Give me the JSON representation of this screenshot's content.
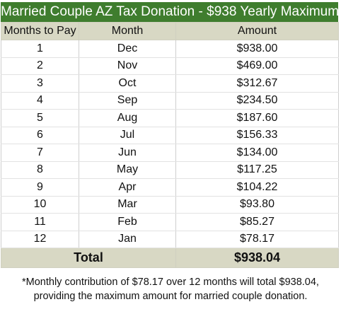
{
  "title": "Married Couple AZ Tax Donation - $938 Yearly Maximum",
  "columns": [
    "Months to Pay",
    "Month",
    "Amount"
  ],
  "rows": [
    {
      "months": "1",
      "month": "Dec",
      "amount": "$938.00"
    },
    {
      "months": "2",
      "month": "Nov",
      "amount": "$469.00"
    },
    {
      "months": "3",
      "month": "Oct",
      "amount": "$312.67"
    },
    {
      "months": "4",
      "month": "Sep",
      "amount": "$234.50"
    },
    {
      "months": "5",
      "month": "Aug",
      "amount": "$187.60"
    },
    {
      "months": "6",
      "month": "Jul",
      "amount": "$156.33"
    },
    {
      "months": "7",
      "month": "Jun",
      "amount": "$134.00"
    },
    {
      "months": "8",
      "month": "May",
      "amount": "$117.25"
    },
    {
      "months": "9",
      "month": "Apr",
      "amount": "$104.22"
    },
    {
      "months": "10",
      "month": "Mar",
      "amount": "$93.80"
    },
    {
      "months": "11",
      "month": "Feb",
      "amount": "$85.27"
    },
    {
      "months": "12",
      "month": "Jan",
      "amount": "$78.17"
    }
  ],
  "total": {
    "label": "Total",
    "amount": "$938.04"
  },
  "footnote": {
    "line1": "*Monthly contribution of $78.17 over 12 months will total $938.04,",
    "line2": "providing the maximum amount for married couple donation."
  },
  "colors": {
    "title_bg": "#3f7d2e",
    "header_bg": "#d8d8c4"
  }
}
